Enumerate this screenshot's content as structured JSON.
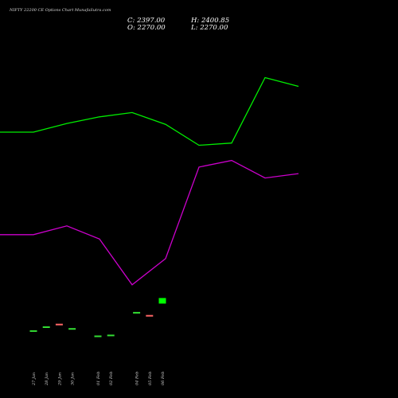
{
  "chart_data": {
    "type": "candlestick",
    "title": "NIFTY 22200  CE Options  Chart MunafaSutra.com",
    "ohlc_header": {
      "close_label": "C: 2397.00",
      "open_label": "O: 2270.00",
      "high_label": "H: 2400.85",
      "low_label": "L: 2270.00"
    },
    "categories": [
      "27 Jan",
      "28 Jan",
      "29 Jan",
      "30 Jan",
      "31 Jan",
      "01 Feb",
      "02 Feb",
      "03 Feb",
      "04 Feb",
      "05 Feb",
      "06 Feb"
    ],
    "x_tick_labels": [
      "27 Jan",
      "28 Jan",
      "29 Jan",
      "30 Jan",
      "01 Feb",
      "02 Feb",
      "04 Feb",
      "05 Feb",
      "06 Feb"
    ],
    "candles": [
      {
        "date": "27 Jan",
        "open": 1640,
        "close": 1640,
        "color": "#33dd33"
      },
      {
        "date": "28 Jan",
        "open": 1730,
        "close": 1730,
        "color": "#33dd33"
      },
      {
        "date": "29 Jan",
        "open": 1790,
        "close": 1790,
        "color": "#ff6666"
      },
      {
        "date": "30 Jan",
        "open": 1690,
        "close": 1670,
        "color": "#33dd33"
      },
      {
        "date": "01 Feb",
        "open": 1520,
        "close": 1520,
        "color": "#33dd33"
      },
      {
        "date": "02 Feb",
        "open": 1540,
        "close": 1540,
        "color": "#33dd33"
      },
      {
        "date": "04 Feb",
        "open": 2060,
        "close": 2060,
        "color": "#33dd33"
      },
      {
        "date": "05 Feb",
        "open": 1990,
        "close": 1990,
        "color": "#ff6666"
      },
      {
        "date": "06 Feb",
        "open": 2270,
        "close": 2397,
        "color": "#00ff00"
      }
    ],
    "overlay_lines": [
      {
        "color": "#00ee00",
        "values": [
          6200,
          6200,
          6400,
          6550,
          6650,
          6380,
          5900,
          5950,
          7450,
          7250,
          7260
        ]
      },
      {
        "color": "#cc00cc",
        "values": [
          3850,
          3850,
          4050,
          3750,
          2700,
          3300,
          5400,
          5550,
          5150,
          5250,
          5300
        ]
      }
    ],
    "ylim": [
      1200,
      8500
    ],
    "grid": false,
    "legend": "none",
    "colors": {
      "background": "#000000",
      "up": "#00ff00",
      "down": "#ff6666",
      "line_primary": "#00ee00",
      "line_secondary": "#cc00cc"
    }
  }
}
